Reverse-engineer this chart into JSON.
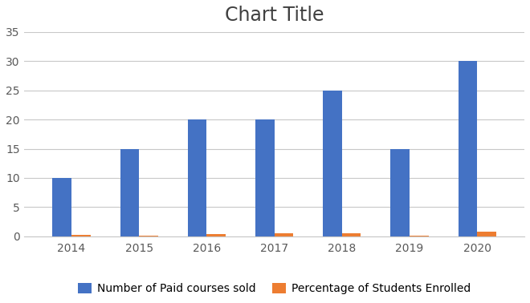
{
  "title": "Chart Title",
  "categories": [
    "2014",
    "2015",
    "2016",
    "2017",
    "2018",
    "2019",
    "2020"
  ],
  "series": [
    {
      "name": "Number of Paid courses sold",
      "values": [
        10,
        15,
        20,
        20,
        25,
        15,
        30
      ],
      "color": "#4472C4"
    },
    {
      "name": "Percentage of Students Enrolled",
      "values": [
        0.3,
        0.15,
        0.35,
        0.5,
        0.55,
        0.12,
        0.75
      ],
      "color": "#ED7D31"
    }
  ],
  "ylim": [
    0,
    35
  ],
  "yticks": [
    0,
    5,
    10,
    15,
    20,
    25,
    30,
    35
  ],
  "bar_width": 0.28,
  "title_fontsize": 17,
  "tick_fontsize": 10,
  "legend_fontsize": 10,
  "background_color": "#ffffff",
  "grid_color": "#c8c8c8",
  "title_color": "#404040",
  "tick_color": "#595959"
}
